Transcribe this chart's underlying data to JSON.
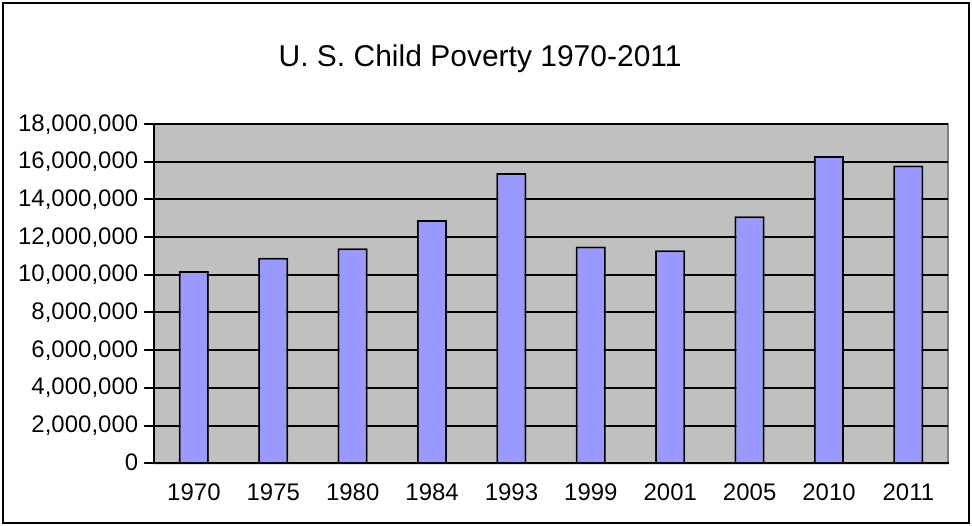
{
  "chart_data": {
    "type": "bar",
    "title": "U. S. Child Poverty 1970-2011",
    "categories": [
      "1970",
      "1975",
      "1980",
      "1984",
      "1993",
      "1999",
      "2001",
      "2005",
      "2010",
      "2011"
    ],
    "values": [
      10200000,
      10900000,
      11400000,
      12900000,
      15400000,
      11500000,
      11300000,
      13100000,
      16300000,
      15800000
    ],
    "color": "#9999ff",
    "ylim": [
      0,
      18000000
    ],
    "yticks": [
      0,
      {
        "value": 2000000,
        "label": "2,000,000"
      },
      {
        "value": 4000000,
        "label": "4,000,000"
      },
      {
        "value": 6000000,
        "label": "6,000,000"
      },
      {
        "value": 8000000,
        "label": "8,000,000"
      },
      {
        "value": 10000000,
        "label": "10,000,000"
      },
      {
        "value": 12000000,
        "label": "12,000,000"
      },
      {
        "value": 14000000,
        "label": "14,000,000"
      },
      {
        "value": 16000000,
        "label": "16,000,000"
      },
      {
        "value": 18000000,
        "label": "18,000,000"
      }
    ],
    "grid": "y",
    "legend": false
  }
}
